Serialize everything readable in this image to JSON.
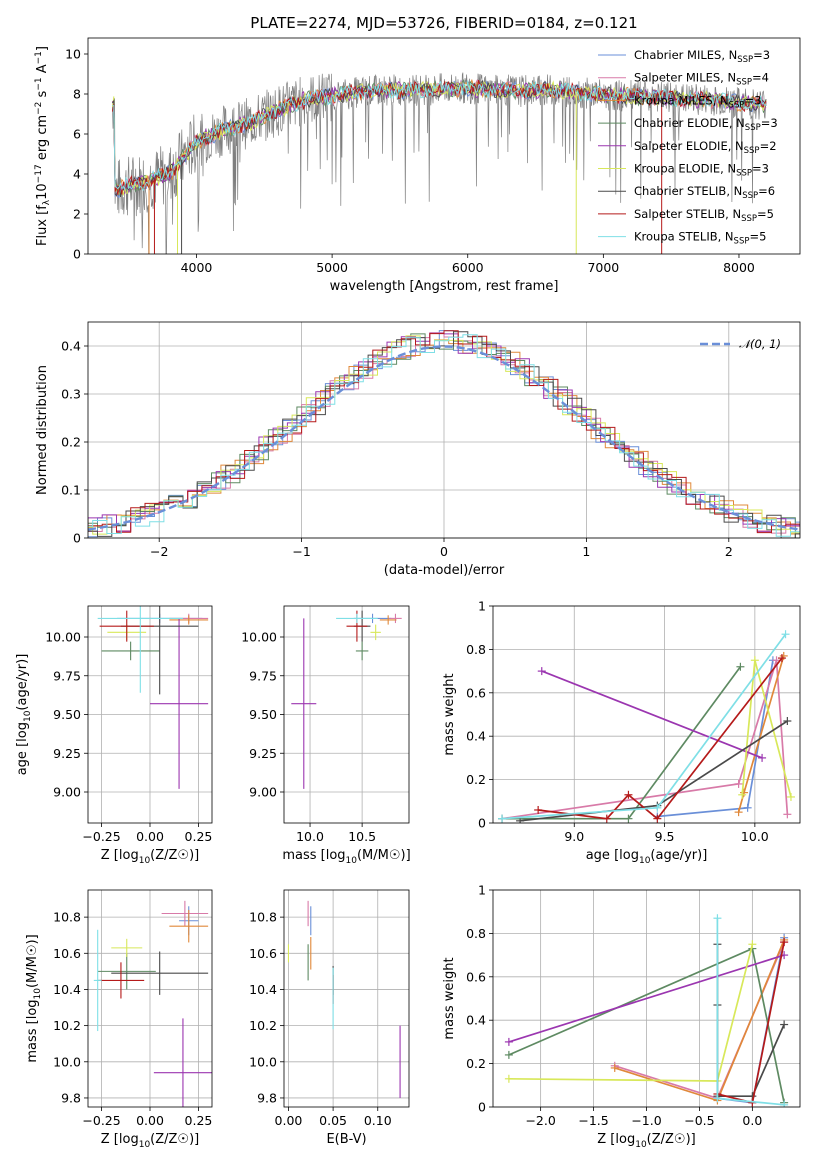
{
  "figure_title": "PLATE=2274, MJD=53726, FIBERID=0184, z=0.121",
  "colors": {
    "Chabrier MILES": "#6a8fd8",
    "Salpeter MILES": "#d87aa8",
    "Kroupa MILES": "#e0883a",
    "Chabrier ELODIE": "#5e8a62",
    "Salpeter ELODIE": "#9b36b0",
    "Kroupa ELODIE": "#d8e85a",
    "Chabrier STELIB": "#4a4a4a",
    "Salpeter STELIB": "#b51a1a",
    "Kroupa STELIB": "#7fdfe6",
    "data": "#7f7f7f",
    "gaussian": "#6a8fd8"
  },
  "chart_data": [
    {
      "id": "spectrum",
      "type": "line",
      "title": "PLATE=2274, MJD=53726, FIBERID=0184, z=0.121",
      "xlabel": "wavelength [Angstrom, rest frame]",
      "ylabel": "Flux [fλ10−17 erg cm−2 s−1 A−1]",
      "xlim": [
        3200,
        8450
      ],
      "ylim": [
        0,
        10.8
      ],
      "xticks": [
        4000,
        5000,
        6000,
        7000,
        8000
      ],
      "yticks": [
        0,
        2,
        4,
        6,
        8,
        10
      ],
      "grid": false,
      "legend_position": "top-right",
      "continuum": [
        [
          3400,
          3.2
        ],
        [
          3600,
          3.6
        ],
        [
          3800,
          4.0
        ],
        [
          4000,
          5.6
        ],
        [
          4200,
          6.2
        ],
        [
          4400,
          6.6
        ],
        [
          4600,
          7.2
        ],
        [
          4800,
          7.7
        ],
        [
          5000,
          7.9
        ],
        [
          5200,
          8.1
        ],
        [
          5400,
          8.2
        ],
        [
          5600,
          8.2
        ],
        [
          5800,
          8.25
        ],
        [
          6000,
          8.3
        ],
        [
          6200,
          8.2
        ],
        [
          6400,
          8.15
        ],
        [
          6600,
          8.2
        ],
        [
          6800,
          8.1
        ],
        [
          7000,
          7.95
        ],
        [
          7200,
          7.9
        ],
        [
          7400,
          7.85
        ],
        [
          7600,
          7.75
        ],
        [
          7800,
          7.7
        ],
        [
          8000,
          7.55
        ],
        [
          8200,
          7.5
        ]
      ],
      "series": [
        {
          "name": "Chabrier MILES",
          "nssp": "3"
        },
        {
          "name": "Salpeter MILES",
          "nssp": "4"
        },
        {
          "name": "Kroupa MILES",
          "nssp": "3"
        },
        {
          "name": "Chabrier ELODIE",
          "nssp": "3"
        },
        {
          "name": "Salpeter ELODIE",
          "nssp": "2"
        },
        {
          "name": "Kroupa ELODIE",
          "nssp": "3"
        },
        {
          "name": "Chabrier STELIB",
          "nssp": "6"
        },
        {
          "name": "Salpeter STELIB",
          "nssp": "5"
        },
        {
          "name": "Kroupa STELIB",
          "nssp": "5"
        }
      ]
    },
    {
      "id": "residuals",
      "type": "line",
      "xlabel": "(data-model)/error",
      "ylabel": "Normed distribution",
      "xlim": [
        -2.5,
        2.5
      ],
      "ylim": [
        0,
        0.45
      ],
      "xticks": [
        -2,
        -1,
        0,
        1,
        2
      ],
      "yticks": [
        0.0,
        0.1,
        0.2,
        0.3,
        0.4
      ],
      "grid": true,
      "legend_position": "top-right",
      "legend": "𝒩(0, 1)",
      "bin_width": 0.1
    },
    {
      "id": "age_vs_Z",
      "type": "scatter",
      "xlabel": "Z [log10(Z/Z☉)]",
      "ylabel": "age  [log10(age/yr)]",
      "xlim": [
        -0.32,
        0.32
      ],
      "ylim": [
        8.8,
        10.2
      ],
      "xticks": [
        -0.25,
        0.0,
        0.25
      ],
      "xticklabels": [
        "−0.25",
        "0.00",
        "0.25"
      ],
      "yticks": [
        9.0,
        9.25,
        9.5,
        9.75,
        10.0
      ],
      "yticklabels": [
        "9.00",
        "9.25",
        "9.50",
        "9.75",
        "10.00"
      ],
      "grid": true,
      "points": [
        {
          "series": "Chabrier MILES",
          "x": 0.05,
          "xerr": 0.22,
          "y": 10.12,
          "yerr": 0.03
        },
        {
          "series": "Salpeter MILES",
          "x": 0.2,
          "xerr": 0.1,
          "y": 10.12,
          "yerr": 0.03
        },
        {
          "series": "Kroupa MILES",
          "x": 0.2,
          "xerr": 0.1,
          "y": 10.11,
          "yerr": 0.03
        },
        {
          "series": "Chabrier ELODIE",
          "x": -0.1,
          "xerr": 0.15,
          "y": 9.91,
          "yerr": 0.06
        },
        {
          "series": "Salpeter ELODIE",
          "x": 0.15,
          "xerr": 0.15,
          "y": 9.57,
          "yerr": 0.55
        },
        {
          "series": "Kroupa ELODIE",
          "x": -0.12,
          "xerr": 0.1,
          "y": 10.03,
          "yerr": 0.05
        },
        {
          "series": "Chabrier STELIB",
          "x": 0.05,
          "xerr": 0.2,
          "y": 10.07,
          "yerr": 0.44
        },
        {
          "series": "Salpeter STELIB",
          "x": -0.12,
          "xerr": 0.14,
          "y": 10.07,
          "yerr": 0.1
        },
        {
          "series": "Kroupa STELIB",
          "x": -0.05,
          "xerr": 0.22,
          "y": 10.12,
          "yerr": 0.48
        }
      ]
    },
    {
      "id": "age_vs_mass",
      "type": "scatter",
      "xlabel": "mass [log10(M/M☉)]",
      "ylabel": "",
      "xlim": [
        9.75,
        10.95
      ],
      "ylim": [
        8.8,
        10.2
      ],
      "xticks": [
        10.0,
        10.5
      ],
      "xticklabels": [
        "10.0",
        "10.5"
      ],
      "yticks": [
        9.0,
        9.25,
        9.5,
        9.75,
        10.0
      ],
      "yticklabels": [
        "9.00",
        "9.25",
        "9.50",
        "9.75",
        "10.00"
      ],
      "grid": true,
      "points": [
        {
          "series": "Chabrier MILES",
          "x": 10.6,
          "xerr": 0.18,
          "y": 10.12,
          "yerr": 0.03
        },
        {
          "series": "Salpeter MILES",
          "x": 10.82,
          "xerr": 0.06,
          "y": 10.12,
          "yerr": 0.03
        },
        {
          "series": "Kroupa MILES",
          "x": 10.75,
          "xerr": 0.08,
          "y": 10.11,
          "yerr": 0.03
        },
        {
          "series": "Chabrier ELODIE",
          "x": 10.5,
          "xerr": 0.06,
          "y": 9.91,
          "yerr": 0.06
        },
        {
          "series": "Salpeter ELODIE",
          "x": 9.94,
          "xerr": 0.12,
          "y": 9.57,
          "yerr": 0.55
        },
        {
          "series": "Kroupa ELODIE",
          "x": 10.63,
          "xerr": 0.05,
          "y": 10.03,
          "yerr": 0.05
        },
        {
          "series": "Chabrier STELIB",
          "x": 10.5,
          "xerr": 0.08,
          "y": 10.07,
          "yerr": 0.1
        },
        {
          "series": "Salpeter STELIB",
          "x": 10.45,
          "xerr": 0.1,
          "y": 10.07,
          "yerr": 0.1
        },
        {
          "series": "Kroupa STELIB",
          "x": 10.45,
          "xerr": 0.2,
          "y": 10.12,
          "yerr": 0.03
        }
      ]
    },
    {
      "id": "weight_vs_age",
      "type": "line",
      "xlabel": "age  [log10(age/yr)]",
      "ylabel": "mass weight",
      "xlim": [
        8.55,
        10.25
      ],
      "ylim": [
        0,
        1.0
      ],
      "xticks": [
        9.0,
        9.5,
        10.0
      ],
      "xticklabels": [
        "9.0",
        "9.5",
        "10.0"
      ],
      "yticks": [
        0.0,
        0.2,
        0.4,
        0.6,
        0.8,
        1.0
      ],
      "grid": true,
      "series": [
        {
          "name": "Chabrier MILES",
          "points": [
            [
              9.46,
              0.03
            ],
            [
              9.96,
              0.07
            ],
            [
              10.1,
              0.75
            ]
          ]
        },
        {
          "name": "Salpeter MILES",
          "points": [
            [
              8.6,
              0.02
            ],
            [
              9.91,
              0.18
            ],
            [
              10.12,
              0.75
            ],
            [
              10.18,
              0.04
            ]
          ]
        },
        {
          "name": "Kroupa MILES",
          "points": [
            [
              9.91,
              0.05
            ],
            [
              9.94,
              0.14
            ],
            [
              10.16,
              0.77
            ]
          ]
        },
        {
          "name": "Chabrier ELODIE",
          "points": [
            [
              8.6,
              0.02
            ],
            [
              9.3,
              0.02
            ],
            [
              9.92,
              0.72
            ]
          ]
        },
        {
          "name": "Salpeter ELODIE",
          "points": [
            [
              8.82,
              0.7
            ],
            [
              10.04,
              0.3
            ]
          ]
        },
        {
          "name": "Kroupa ELODIE",
          "points": [
            [
              9.93,
              0.13
            ],
            [
              10.0,
              0.75
            ],
            [
              10.2,
              0.12
            ]
          ]
        },
        {
          "name": "Chabrier STELIB",
          "points": [
            [
              8.7,
              0.01
            ],
            [
              9.46,
              0.08
            ],
            [
              10.18,
              0.47
            ]
          ]
        },
        {
          "name": "Salpeter STELIB",
          "points": [
            [
              8.8,
              0.06
            ],
            [
              9.18,
              0.02
            ],
            [
              9.3,
              0.13
            ],
            [
              9.46,
              0.02
            ],
            [
              10.15,
              0.76
            ]
          ]
        },
        {
          "name": "Kroupa STELIB",
          "points": [
            [
              8.6,
              0.02
            ],
            [
              9.46,
              0.07
            ],
            [
              10.17,
              0.87
            ]
          ]
        }
      ]
    },
    {
      "id": "mass_vs_Z",
      "type": "scatter",
      "xlabel": "Z [log10(Z/Z☉)]",
      "ylabel": "mass [log10(M/M☉)]",
      "xlim": [
        -0.32,
        0.32
      ],
      "ylim": [
        9.75,
        10.95
      ],
      "xticks": [
        -0.25,
        0.0,
        0.25
      ],
      "xticklabels": [
        "−0.25",
        "0.00",
        "0.25"
      ],
      "yticks": [
        9.8,
        10.0,
        10.2,
        10.4,
        10.6,
        10.8
      ],
      "yticklabels": [
        "9.8",
        "10.0",
        "10.2",
        "10.4",
        "10.6",
        "10.8"
      ],
      "grid": true,
      "points": [
        {
          "series": "Chabrier MILES",
          "x": 0.2,
          "xerr": 0.05,
          "y": 10.78,
          "yerr": 0.08
        },
        {
          "series": "Salpeter MILES",
          "x": 0.18,
          "xerr": 0.12,
          "y": 10.82,
          "yerr": 0.07
        },
        {
          "series": "Kroupa MILES",
          "x": 0.2,
          "xerr": 0.1,
          "y": 10.75,
          "yerr": 0.09
        },
        {
          "series": "Chabrier ELODIE",
          "x": -0.12,
          "xerr": 0.15,
          "y": 10.5,
          "yerr": 0.1
        },
        {
          "series": "Salpeter ELODIE",
          "x": 0.17,
          "xerr": 0.15,
          "y": 9.94,
          "yerr": 0.3
        },
        {
          "series": "Kroupa ELODIE",
          "x": -0.12,
          "xerr": 0.08,
          "y": 10.63,
          "yerr": 0.05
        },
        {
          "series": "Chabrier STELIB",
          "x": 0.05,
          "xerr": 0.25,
          "y": 10.49,
          "yerr": 0.12
        },
        {
          "series": "Salpeter STELIB",
          "x": -0.15,
          "xerr": 0.12,
          "y": 10.45,
          "yerr": 0.1
        },
        {
          "series": "Kroupa STELIB",
          "x": -0.27,
          "xerr": 0.02,
          "y": 10.45,
          "yerr": 0.28
        }
      ]
    },
    {
      "id": "mass_vs_ebv",
      "type": "scatter",
      "xlabel": "E(B-V)",
      "ylabel": "",
      "xlim": [
        -0.005,
        0.135
      ],
      "ylim": [
        9.75,
        10.95
      ],
      "xticks": [
        0.0,
        0.05,
        0.1
      ],
      "xticklabels": [
        "0.00",
        "0.05",
        "0.10"
      ],
      "yticks": [
        9.8,
        10.0,
        10.2,
        10.4,
        10.6,
        10.8
      ],
      "yticklabels": [
        "9.8",
        "10.0",
        "10.2",
        "10.4",
        "10.6",
        "10.8"
      ],
      "grid": true,
      "points": [
        {
          "series": "Chabrier MILES",
          "x": 0.025,
          "xerr": 0.0,
          "y": 10.78,
          "yerr": 0.08
        },
        {
          "series": "Salpeter MILES",
          "x": 0.022,
          "xerr": 0.0,
          "y": 10.82,
          "yerr": 0.07
        },
        {
          "series": "Kroupa MILES",
          "x": 0.025,
          "xerr": 0.0,
          "y": 10.6,
          "yerr": 0.09
        },
        {
          "series": "Chabrier ELODIE",
          "x": 0.022,
          "xerr": 0.0,
          "y": 10.55,
          "yerr": 0.1
        },
        {
          "series": "Salpeter ELODIE",
          "x": 0.125,
          "xerr": 0.0,
          "y": 10.0,
          "yerr": 0.2
        },
        {
          "series": "Kroupa ELODIE",
          "x": 0.0,
          "xerr": 0.0,
          "y": 10.6,
          "yerr": 0.05
        },
        {
          "series": "Chabrier STELIB",
          "x": 0.05,
          "xerr": 0.0,
          "y": 10.45,
          "yerr": 0.08
        },
        {
          "series": "Salpeter STELIB",
          "x": 0.05,
          "xerr": 0.0,
          "y": 10.4,
          "yerr": 0.08
        },
        {
          "series": "Kroupa STELIB",
          "x": 0.05,
          "xerr": 0.0,
          "y": 10.35,
          "yerr": 0.17
        }
      ]
    },
    {
      "id": "weight_vs_Z",
      "type": "line",
      "xlabel": "Z [log10(Z/Z☉)]",
      "ylabel": "mass weight",
      "xlim": [
        -2.45,
        0.45
      ],
      "ylim": [
        0,
        1.0
      ],
      "xticks": [
        -2.0,
        -1.5,
        -1.0,
        -0.5,
        0.0
      ],
      "xticklabels": [
        "−2.0",
        "−1.5",
        "−1.0",
        "−0.5",
        "0.0"
      ],
      "yticks": [
        0.0,
        0.2,
        0.4,
        0.6,
        0.8,
        1.0
      ],
      "grid": true,
      "series": [
        {
          "name": "Chabrier MILES",
          "points": [
            [
              -0.33,
              0.04
            ],
            [
              0.0,
              0.02
            ],
            [
              0.3,
              0.78
            ]
          ]
        },
        {
          "name": "Salpeter MILES",
          "points": [
            [
              -1.3,
              0.19
            ],
            [
              -0.33,
              0.04
            ],
            [
              0.3,
              0.76
            ]
          ]
        },
        {
          "name": "Kroupa MILES",
          "points": [
            [
              -1.3,
              0.18
            ],
            [
              -0.33,
              0.03
            ],
            [
              0.3,
              0.77
            ]
          ]
        },
        {
          "name": "Chabrier ELODIE",
          "points": [
            [
              -2.3,
              0.24
            ],
            [
              0.0,
              0.73
            ],
            [
              0.3,
              0.02
            ]
          ]
        },
        {
          "name": "Salpeter ELODIE",
          "points": [
            [
              -2.3,
              0.3
            ],
            [
              0.3,
              0.7
            ]
          ]
        },
        {
          "name": "Kroupa ELODIE",
          "points": [
            [
              -2.3,
              0.13
            ],
            [
              -0.33,
              0.12
            ],
            [
              0.0,
              0.75
            ]
          ]
        },
        {
          "name": "Chabrier STELIB",
          "points": [
            [
              -0.33,
              0.75
            ],
            [
              -0.33,
              0.47
            ],
            [
              -0.33,
              0.05
            ],
            [
              0.0,
              0.05
            ],
            [
              0.3,
              0.38
            ]
          ]
        },
        {
          "name": "Salpeter STELIB",
          "points": [
            [
              -0.33,
              0.06
            ],
            [
              0.0,
              0.02
            ],
            [
              0.3,
              0.76
            ]
          ]
        },
        {
          "name": "Kroupa STELIB",
          "points": [
            [
              -0.33,
              0.87
            ],
            [
              -0.33,
              0.04
            ],
            [
              0.3,
              0.01
            ]
          ]
        }
      ]
    }
  ]
}
